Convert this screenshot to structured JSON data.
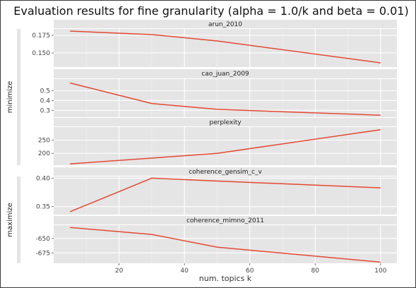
{
  "chart_data": {
    "type": "line",
    "title": "Evaluation results for fine granularity (alpha = 1.0/k and beta = 0.01)",
    "xlabel": "num. topics k",
    "x": [
      5,
      30,
      50,
      100
    ],
    "xlim": [
      0,
      105
    ],
    "xticks": [
      20,
      40,
      60,
      80,
      100
    ],
    "line_color": "#e24a33",
    "panel_color": "#e5e5e5",
    "strip_color": "#e5e5e5",
    "grid": true,
    "groups": [
      {
        "label": "minimize",
        "panels": [
          "arun_2010",
          "cao_juan_2009",
          "perplexity"
        ]
      },
      {
        "label": "maximize",
        "panels": [
          "coherence_gensim_c_v",
          "coherence_mimno_2011"
        ]
      }
    ],
    "panels": [
      {
        "name": "arun_2010",
        "values": [
          0.181,
          0.176,
          0.167,
          0.136
        ],
        "ylim": [
          0.13,
          0.184
        ],
        "yticks": [
          0.15,
          0.175
        ],
        "ytick_labels": [
          "0.150",
          "0.175"
        ]
      },
      {
        "name": "cao_juan_2009",
        "values": [
          0.58,
          0.37,
          0.31,
          0.25
        ],
        "ylim": [
          0.23,
          0.62
        ],
        "yticks": [
          0.3,
          0.4,
          0.5
        ],
        "ytick_labels": [
          "0.3",
          "0.4",
          "0.5"
        ]
      },
      {
        "name": "perplexity",
        "values": [
          160,
          182,
          200,
          290
        ],
        "ylim": [
          155,
          300
        ],
        "yticks": [
          200,
          250
        ],
        "ytick_labels": [
          "200",
          "250"
        ]
      },
      {
        "name": "coherence_gensim_c_v",
        "values": [
          0.341,
          0.4,
          0.395,
          0.383
        ],
        "ylim": [
          0.336,
          0.403
        ],
        "yticks": [
          0.35,
          0.4
        ],
        "ytick_labels": [
          "0.35",
          "0.40"
        ]
      },
      {
        "name": "coherence_mimno_2011",
        "values": [
          -631,
          -643,
          -665,
          -691
        ],
        "ylim": [
          -693,
          -627
        ],
        "yticks": [
          -675,
          -650
        ],
        "ytick_labels": [
          "-675",
          "-650"
        ]
      }
    ]
  }
}
